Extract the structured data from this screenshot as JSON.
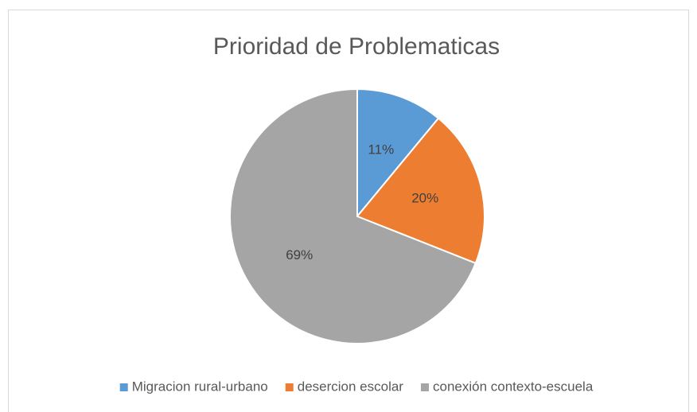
{
  "chart_data": {
    "type": "pie",
    "title": "Prioridad de Problematicas",
    "categories": [
      "Migracion rural-urbano",
      "desercion escolar",
      "conexión contexto-escuela"
    ],
    "values": [
      11,
      20,
      69
    ],
    "value_labels": [
      "11%",
      "20%",
      "69%"
    ],
    "colors": [
      "#5b9bd5",
      "#ed7d31",
      "#a5a5a5"
    ],
    "legend": "bottom"
  }
}
